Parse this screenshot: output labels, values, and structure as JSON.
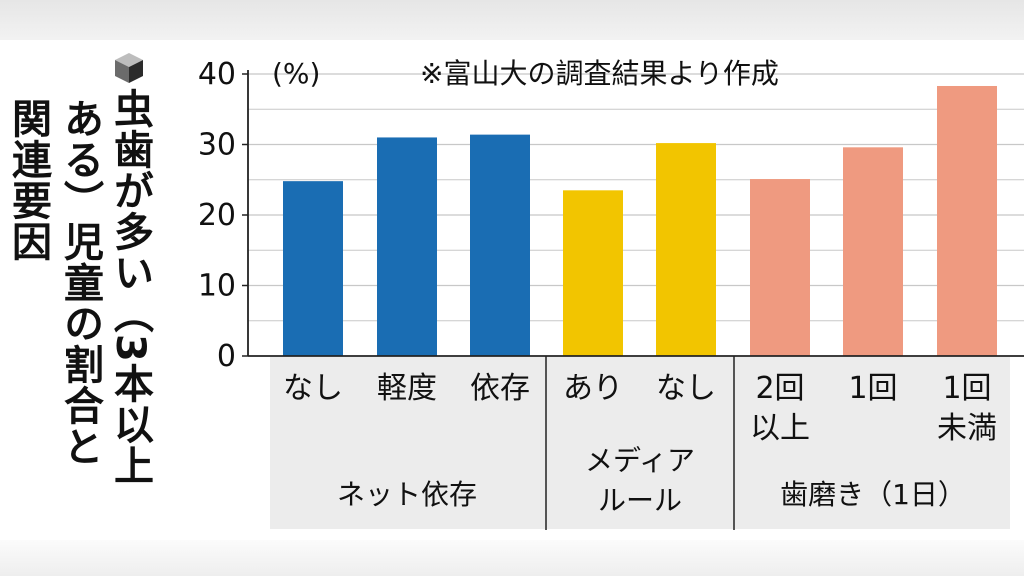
{
  "title": {
    "line1": "虫歯が多い（3本以上",
    "line2": "ある）児童の割合と",
    "line3": "関連要因"
  },
  "icon": "cube-bullet-icon",
  "chart_data": {
    "type": "bar",
    "unit_label": "(%)",
    "note": "※富山大の調査結果より作成",
    "ylim": [
      0,
      40
    ],
    "yticks": [
      "0",
      "10",
      "20",
      "30",
      "40"
    ],
    "grid": true,
    "categories": [
      {
        "label": [
          "なし"
        ],
        "value": 24.8,
        "group": 0
      },
      {
        "label": [
          "軽度"
        ],
        "value": 31.0,
        "group": 0
      },
      {
        "label": [
          "依存"
        ],
        "value": 31.4,
        "group": 0
      },
      {
        "label": [
          "あり"
        ],
        "value": 23.5,
        "group": 1
      },
      {
        "label": [
          "なし"
        ],
        "value": 30.2,
        "group": 1
      },
      {
        "label": [
          "2回",
          "以上"
        ],
        "value": 25.1,
        "group": 2
      },
      {
        "label": [
          "1回"
        ],
        "value": 29.6,
        "group": 2
      },
      {
        "label": [
          "1回",
          "未満"
        ],
        "value": 38.3,
        "group": 2
      }
    ],
    "groups": [
      {
        "label": [
          "ネット依存"
        ],
        "color": "#1a6db3"
      },
      {
        "label": [
          "メディア",
          "ルール"
        ],
        "color": "#f2c500"
      },
      {
        "label": [
          "歯磨き（1日）"
        ],
        "color": "#ef9a80"
      }
    ],
    "colors": {
      "axis": "#222222",
      "grid": "#c8c8c8",
      "label_band": "#ececec"
    }
  }
}
